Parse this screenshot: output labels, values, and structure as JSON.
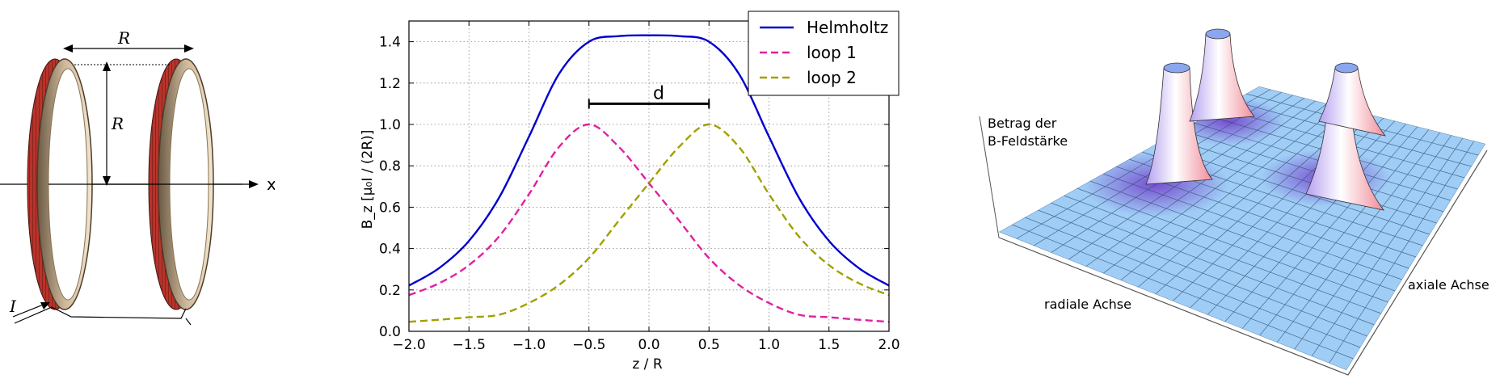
{
  "coils": {
    "label_R_top": "R",
    "label_R_side": "R",
    "label_x": "x",
    "label_I": "I"
  },
  "chart_data": {
    "type": "line",
    "xlabel": "z / R",
    "ylabel": "B_z [μ₀I / (2R)]",
    "xlim": [
      -2.0,
      2.0
    ],
    "ylim": [
      0.0,
      1.5
    ],
    "xticks": [
      -2.0,
      -1.5,
      -1.0,
      -0.5,
      0.0,
      0.5,
      1.0,
      1.5,
      2.0
    ],
    "xtick_labels": [
      "−2.0",
      "−1.5",
      "−1.0",
      "−0.5",
      "0.0",
      "0.5",
      "1.0",
      "1.5",
      "2.0"
    ],
    "yticks": [
      0.0,
      0.2,
      0.4,
      0.6,
      0.8,
      1.0,
      1.2,
      1.4
    ],
    "ytick_labels": [
      "0.0",
      "0.2",
      "0.4",
      "0.6",
      "0.8",
      "1.0",
      "1.2",
      "1.4"
    ],
    "grid": true,
    "legend_position": "top-right",
    "x": [
      -2.0,
      -1.75,
      -1.5,
      -1.25,
      -1.0,
      -0.75,
      -0.5,
      -0.25,
      0.0,
      0.25,
      0.5,
      0.75,
      1.0,
      1.25,
      1.5,
      1.75,
      2.0
    ],
    "series": [
      {
        "name": "Helmholtz",
        "color": "#0000cc",
        "dash": "solid",
        "values": [
          0.221,
          0.305,
          0.437,
          0.645,
          0.941,
          1.244,
          1.4,
          1.427,
          1.431,
          1.427,
          1.4,
          1.244,
          0.941,
          0.645,
          0.437,
          0.305,
          0.221
        ]
      },
      {
        "name": "loop 1",
        "color": "#e020a0",
        "dash": "dashed",
        "values": [
          0.175,
          0.232,
          0.32,
          0.458,
          0.663,
          0.891,
          1.0,
          0.891,
          0.716,
          0.536,
          0.354,
          0.224,
          0.137,
          0.08,
          0.068,
          0.056,
          0.046
        ]
      },
      {
        "name": "loop 2",
        "color": "#a0a000",
        "dash": "dashed",
        "values": [
          0.046,
          0.056,
          0.068,
          0.08,
          0.137,
          0.224,
          0.354,
          0.536,
          0.716,
          0.891,
          1.0,
          0.891,
          0.663,
          0.458,
          0.32,
          0.232,
          0.175
        ]
      }
    ],
    "annotation": {
      "label": "d",
      "from": -0.5,
      "to": 0.5,
      "y": 1.1
    }
  },
  "surface": {
    "label_line1": "Betrag der",
    "label_line2": "B-Feldstärke",
    "radial_label": "radiale Achse",
    "axial_label": "axiale Achse"
  }
}
